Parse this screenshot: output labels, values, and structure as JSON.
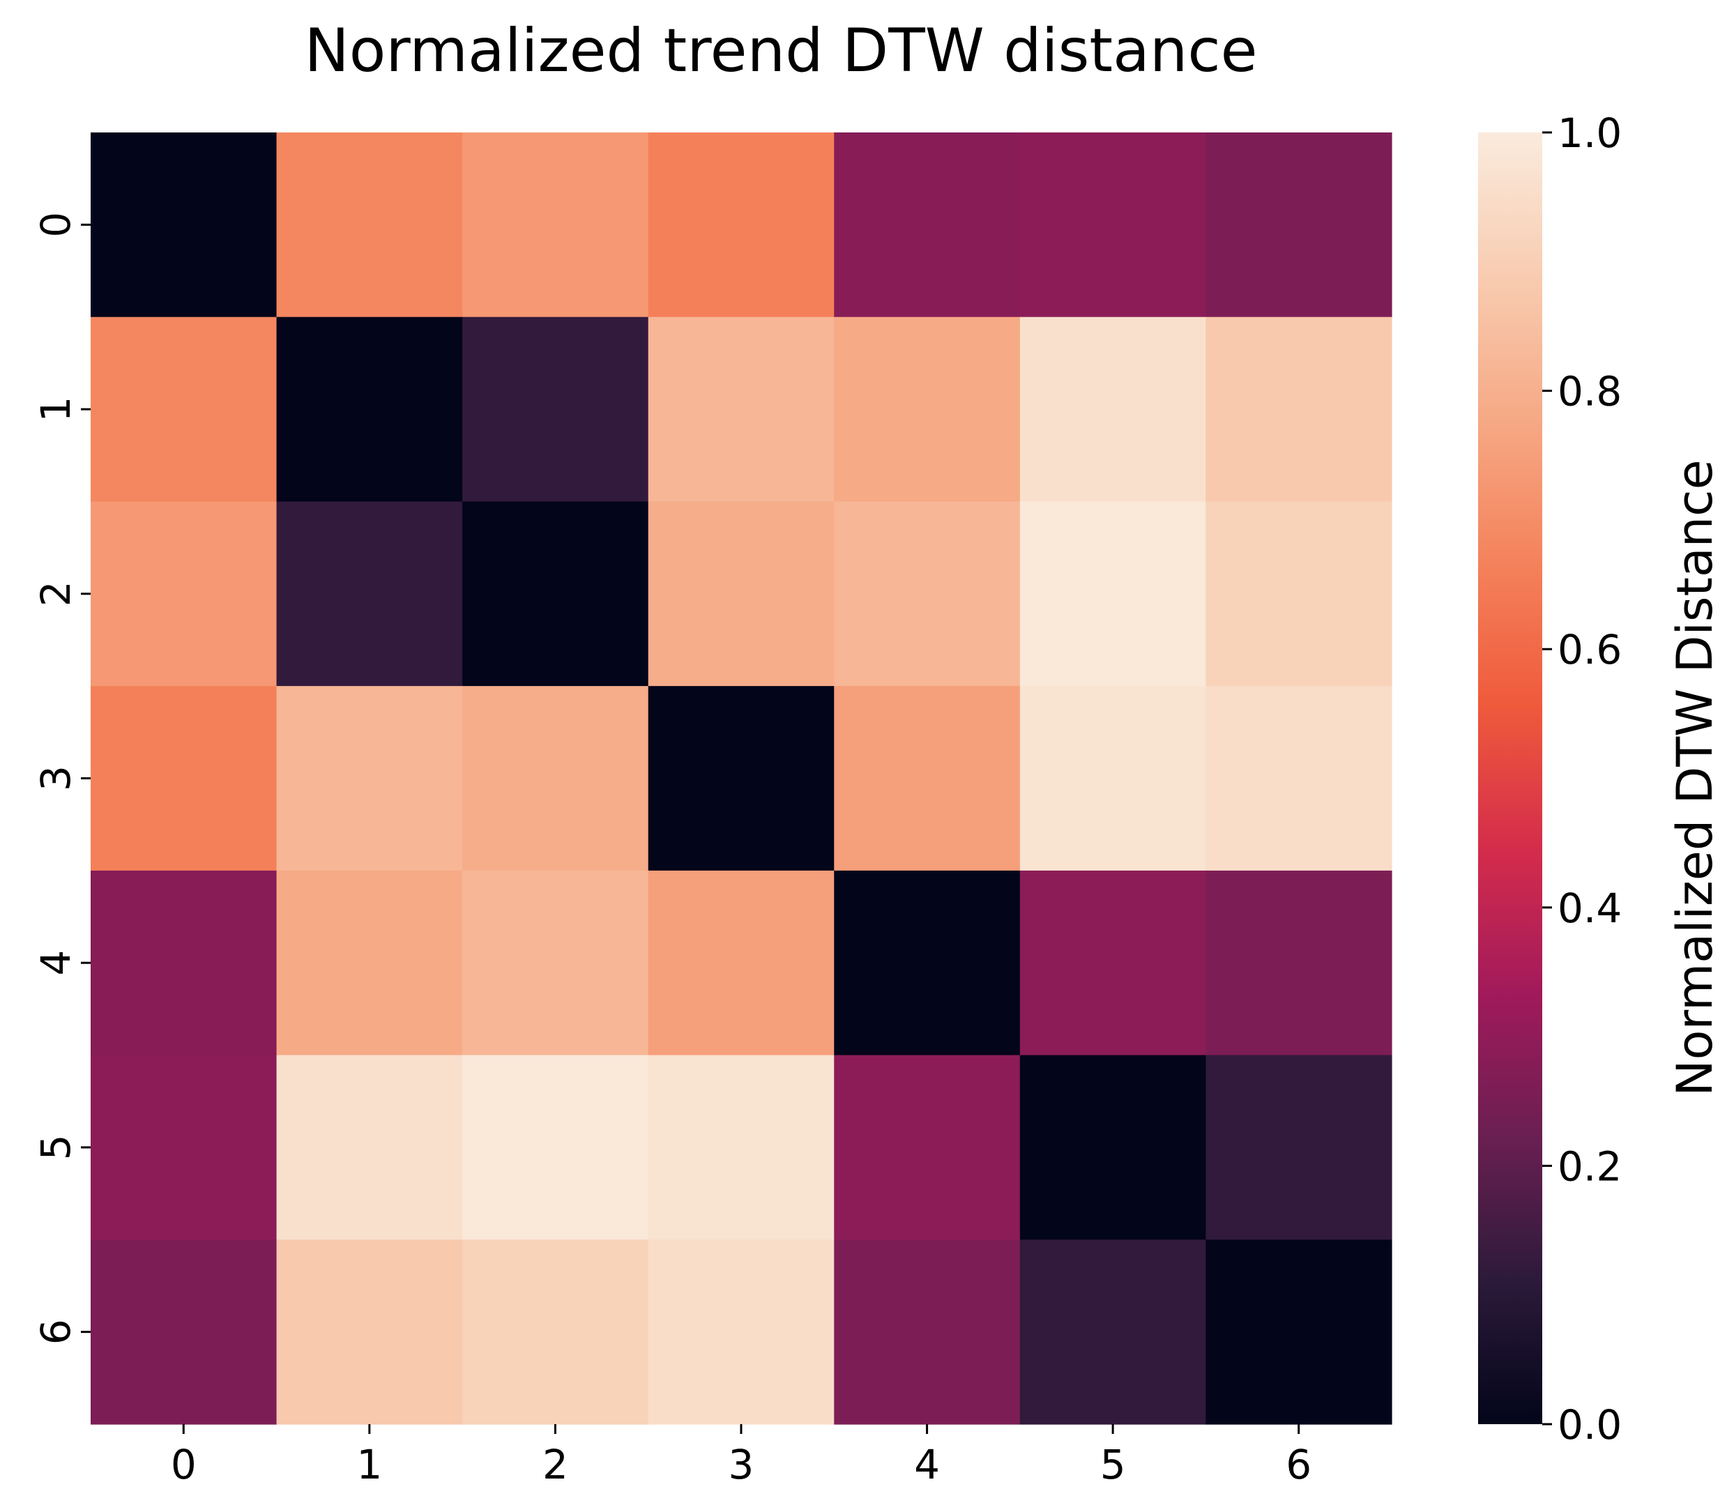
{
  "chart_data": {
    "type": "heatmap",
    "title": "Normalized trend DTW distance",
    "xlabel": "",
    "ylabel": "",
    "x_categories": [
      "0",
      "1",
      "2",
      "3",
      "4",
      "5",
      "6"
    ],
    "y_categories": [
      "0",
      "1",
      "2",
      "3",
      "4",
      "5",
      "6"
    ],
    "values": [
      [
        0.0,
        0.68,
        0.73,
        0.66,
        0.28,
        0.29,
        0.26
      ],
      [
        0.68,
        0.0,
        0.12,
        0.82,
        0.78,
        0.96,
        0.88
      ],
      [
        0.73,
        0.12,
        0.0,
        0.79,
        0.82,
        0.99,
        0.91
      ],
      [
        0.66,
        0.82,
        0.79,
        0.0,
        0.75,
        0.97,
        0.95
      ],
      [
        0.28,
        0.78,
        0.82,
        0.75,
        0.0,
        0.29,
        0.26
      ],
      [
        0.29,
        0.96,
        0.99,
        0.97,
        0.29,
        0.0,
        0.12
      ],
      [
        0.26,
        0.88,
        0.91,
        0.95,
        0.26,
        0.12,
        0.0
      ]
    ],
    "colorbar": {
      "label": "Normalized DTW Distance",
      "range": [
        0.0,
        1.0
      ],
      "ticks": [
        "0.0",
        "0.2",
        "0.4",
        "0.6",
        "0.8",
        "1.0"
      ],
      "colormap": "rocket",
      "colormap_stops": [
        "#03051a",
        "#2c1a3a",
        "#6a1f52",
        "#a11a5b",
        "#d42c4b",
        "#ef5a3b",
        "#f4825b",
        "#f6a985",
        "#f8ccb1",
        "#faebdd"
      ]
    },
    "grid": false
  }
}
